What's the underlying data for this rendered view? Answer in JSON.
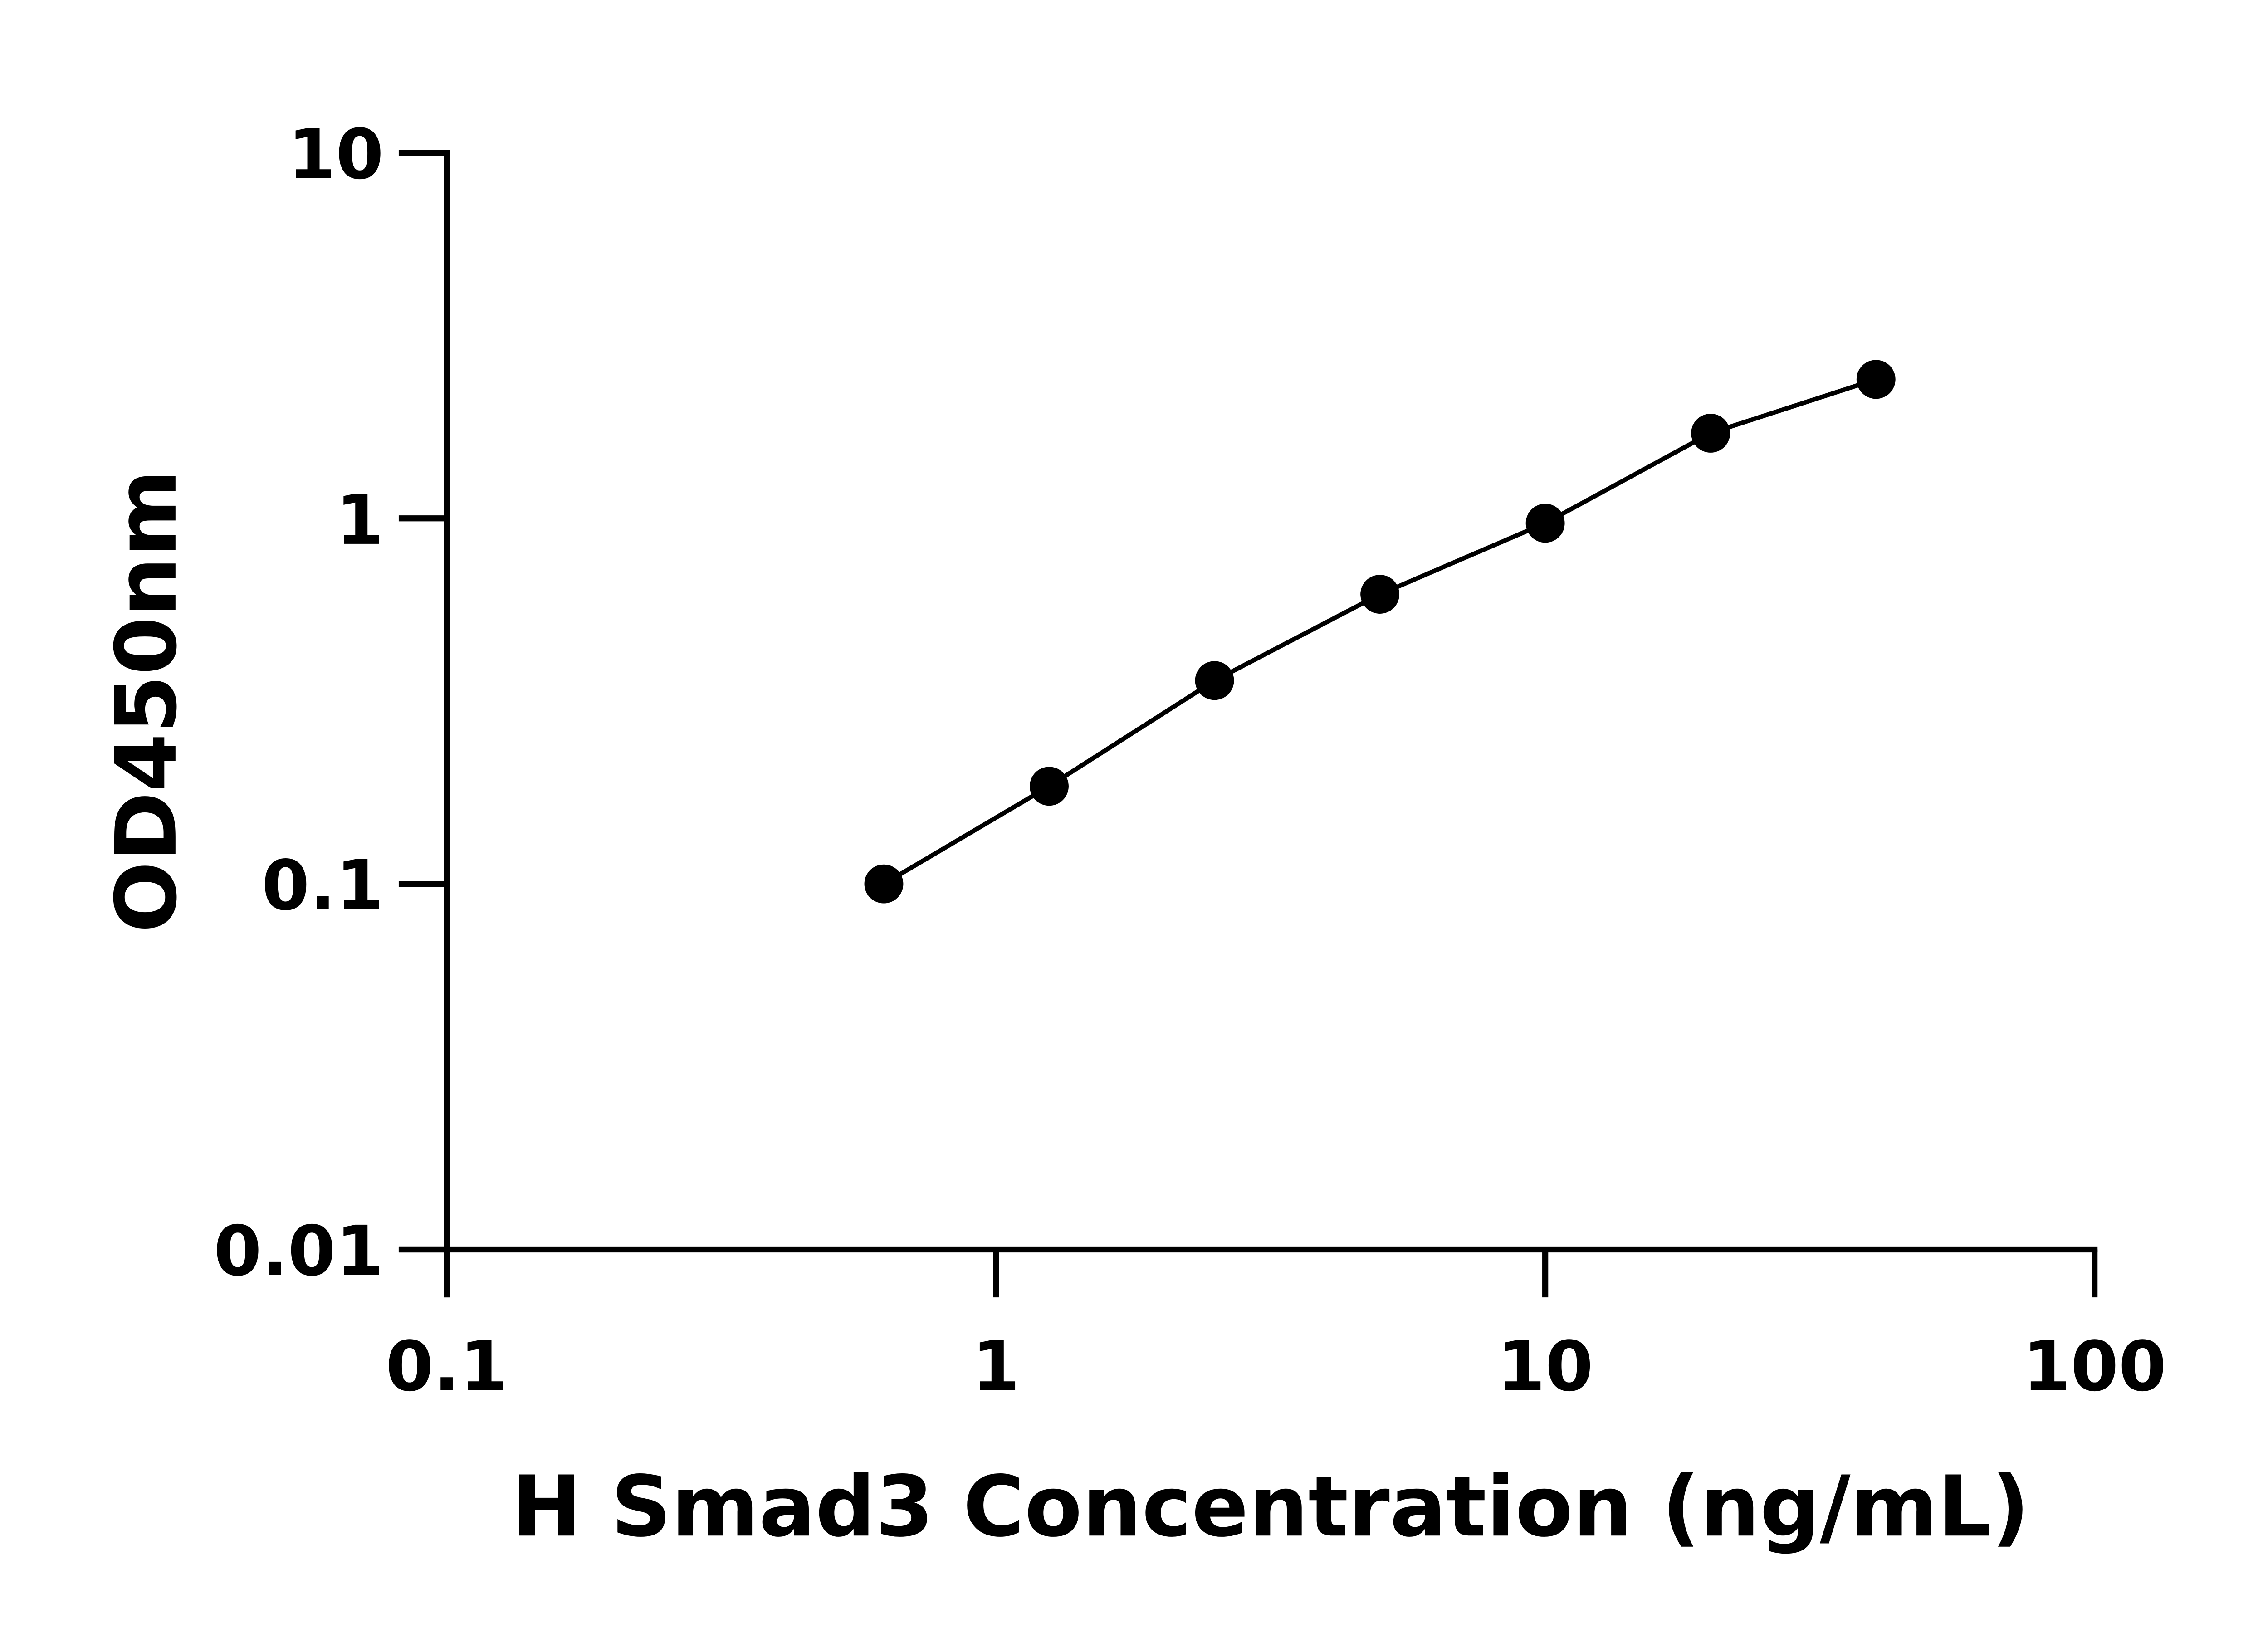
{
  "chart_data": {
    "type": "line",
    "title": "",
    "xlabel": "H Smad3 Concentration (ng/mL)",
    "ylabel": "OD450nm",
    "x_scale": "log",
    "y_scale": "log",
    "xlim": [
      0.1,
      100
    ],
    "ylim": [
      0.01,
      10
    ],
    "x_ticks": [
      "0.1",
      "1",
      "10",
      "100"
    ],
    "y_ticks": [
      "0.01",
      "0.1",
      "1",
      "10"
    ],
    "grid": false,
    "legend": "none",
    "series": [
      {
        "x": [
          0.625,
          1.25,
          2.5,
          5,
          10,
          20,
          40
        ],
        "y": [
          0.1,
          0.185,
          0.36,
          0.62,
          0.97,
          1.71,
          2.4
        ],
        "marker": "filled-circle",
        "color": "#000000"
      }
    ]
  }
}
